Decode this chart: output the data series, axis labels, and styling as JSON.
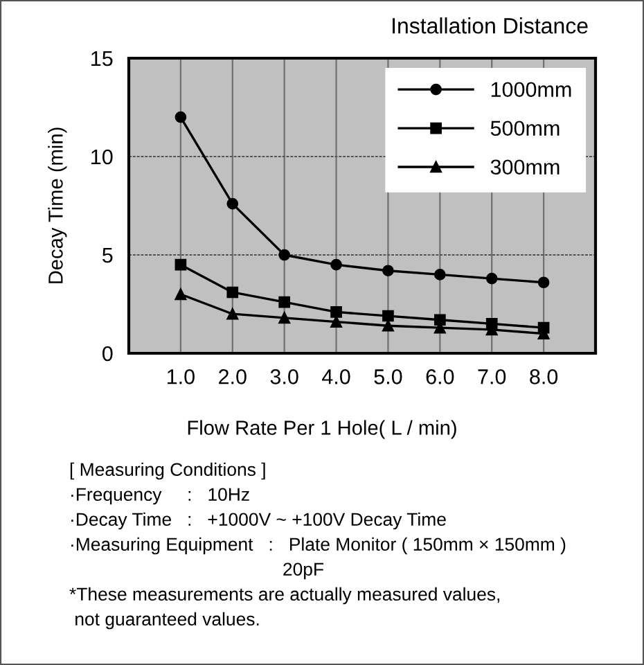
{
  "chart_data": {
    "type": "line",
    "title": "Installation Distance",
    "xlabel": "Flow Rate Per 1 Hole( L / min)",
    "ylabel": "Decay Time (min)",
    "categories": [
      "1.0",
      "2.0",
      "3.0",
      "4.0",
      "5.0",
      "6.0",
      "7.0",
      "8.0"
    ],
    "series": [
      {
        "name": "1000mm",
        "color": "#000000",
        "marker": "circle",
        "values": [
          12,
          7.6,
          5.0,
          4.5,
          4.2,
          4.0,
          3.8,
          3.6
        ]
      },
      {
        "name": "500mm",
        "color": "#000000",
        "marker": "square",
        "values": [
          4.5,
          3.1,
          2.6,
          2.1,
          1.9,
          1.7,
          1.5,
          1.3
        ]
      },
      {
        "name": "300mm",
        "color": "#000000",
        "marker": "triangle",
        "values": [
          3.0,
          2.0,
          1.8,
          1.6,
          1.4,
          1.3,
          1.2,
          1.0
        ]
      }
    ],
    "ylim": [
      0,
      15
    ],
    "yticks": [
      0,
      5,
      10,
      15
    ],
    "grid": true,
    "legend": "top right",
    "annotations": [
      "[ Measuring Conditions ]",
      "·Frequency     :   10Hz",
      "·Decay Time   :   +1000V ~ +100V Decay Time",
      "·Measuring Equipment   :   Plate Monitor ( 150mm × 150mm )",
      "                                          20pF",
      "*These measurements are actually measured values,",
      " not guaranteed values."
    ]
  }
}
